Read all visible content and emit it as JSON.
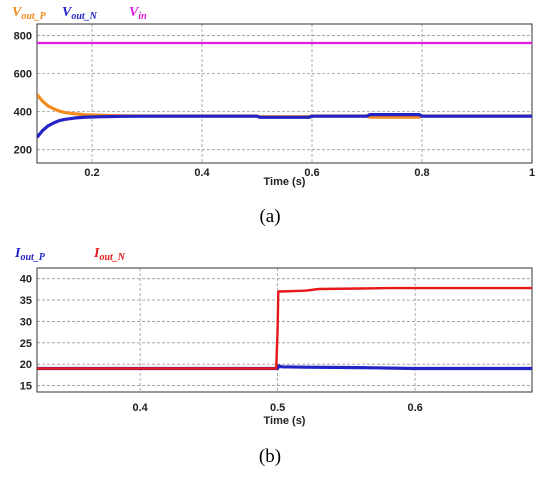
{
  "chart_data": [
    {
      "type": "line",
      "panel_label": "a",
      "xlabel": "Time (s)",
      "ylabel": "",
      "xlim": [
        0.1,
        1.0
      ],
      "ylim": [
        130,
        860
      ],
      "xticks": [
        0.2,
        0.4,
        0.6,
        0.8,
        1
      ],
      "xtick_labels": [
        "0.2",
        "0.4",
        "0.6",
        "0.8",
        "1"
      ],
      "yticks": [
        200,
        400,
        600,
        800
      ],
      "ytick_labels": [
        "200",
        "400",
        "600",
        "800"
      ],
      "grid": true,
      "legend_placement": "top-left, above plot",
      "series": [
        {
          "name": "V_out_P",
          "legend": {
            "main": "V",
            "sub": "out_P"
          },
          "color": "#f28a1e",
          "x": [
            0.1,
            0.11,
            0.12,
            0.13,
            0.14,
            0.15,
            0.17,
            0.19,
            0.22,
            0.26,
            0.3,
            0.5,
            0.505,
            0.595,
            0.6,
            0.7,
            0.705,
            0.795,
            0.8,
            1.0
          ],
          "y": [
            490,
            455,
            430,
            415,
            403,
            396,
            388,
            383,
            380,
            378,
            377,
            377,
            373,
            373,
            377,
            377,
            371,
            371,
            377,
            377
          ]
        },
        {
          "name": "V_out_N",
          "legend": {
            "main": "V",
            "sub": "out_N"
          },
          "color": "#2323c8",
          "x": [
            0.1,
            0.11,
            0.12,
            0.13,
            0.14,
            0.15,
            0.17,
            0.19,
            0.22,
            0.26,
            0.3,
            0.5,
            0.505,
            0.595,
            0.6,
            0.7,
            0.705,
            0.795,
            0.8,
            1.0
          ],
          "y": [
            265,
            300,
            325,
            340,
            352,
            359,
            367,
            371,
            373,
            375,
            376,
            376,
            370,
            370,
            376,
            376,
            384,
            384,
            376,
            376
          ]
        },
        {
          "name": "V_in",
          "legend": {
            "main": "V",
            "sub": "in"
          },
          "color": "#e01ce0",
          "x": [
            0.1,
            1.0
          ],
          "y": [
            760,
            760
          ]
        }
      ]
    },
    {
      "type": "line",
      "panel_label": "b",
      "xlabel": "Time (s)",
      "ylabel": "",
      "xlim": [
        0.325,
        0.685
      ],
      "ylim": [
        13.5,
        42.5
      ],
      "xticks": [
        0.4,
        0.5,
        0.6
      ],
      "xtick_labels": [
        "0.4",
        "0.5",
        "0.6"
      ],
      "yticks": [
        15,
        20,
        25,
        30,
        35,
        40
      ],
      "ytick_labels": [
        "15",
        "20",
        "25",
        "30",
        "35",
        "40"
      ],
      "grid": true,
      "legend_placement": "top-left, above plot",
      "series": [
        {
          "name": "I_out_P",
          "legend": {
            "main": "I",
            "sub": "out_P"
          },
          "color": "#2323c8",
          "x": [
            0.325,
            0.499,
            0.5,
            0.501,
            0.503,
            0.52,
            0.56,
            0.6,
            0.685
          ],
          "y": [
            19.0,
            19.0,
            19.0,
            19.6,
            19.4,
            19.3,
            19.2,
            19.0,
            19.0
          ]
        },
        {
          "name": "I_out_N",
          "legend": {
            "main": "I",
            "sub": "out_N"
          },
          "color": "#e81818",
          "x": [
            0.325,
            0.499,
            0.5,
            0.5005,
            0.502,
            0.52,
            0.53,
            0.56,
            0.58,
            0.685
          ],
          "y": [
            19.0,
            19.0,
            28.0,
            37.0,
            37.0,
            37.2,
            37.6,
            37.7,
            37.8,
            37.8
          ]
        }
      ]
    }
  ],
  "captions": [
    "(a)",
    "(b)"
  ]
}
